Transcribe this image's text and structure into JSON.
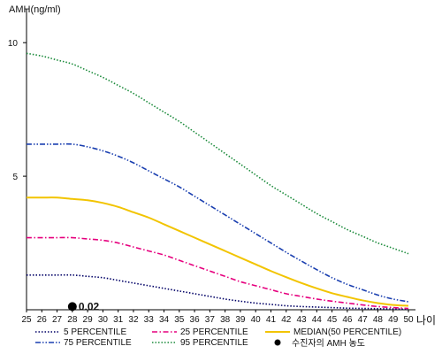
{
  "chart_data": {
    "type": "line",
    "ylabel": "AMH(ng/ml)",
    "xunit": "나이",
    "x": [
      25,
      26,
      27,
      28,
      29,
      30,
      31,
      32,
      33,
      34,
      35,
      36,
      37,
      38,
      39,
      40,
      41,
      42,
      43,
      44,
      45,
      46,
      47,
      48,
      49,
      50
    ],
    "x_ticks": [
      25,
      26,
      27,
      28,
      29,
      30,
      31,
      32,
      33,
      34,
      35,
      36,
      37,
      38,
      39,
      40,
      41,
      42,
      43,
      44,
      45,
      46,
      47,
      48,
      49,
      50
    ],
    "y_ticks": [
      5,
      10
    ],
    "xlim": [
      25,
      50
    ],
    "ylim": [
      0,
      11.2
    ],
    "grid": false,
    "legend_position": "bottom",
    "series": [
      {
        "name": "5 PERCENTILE",
        "color": "#000066",
        "dash": "dotted",
        "values": [
          1.3,
          1.3,
          1.3,
          1.3,
          1.25,
          1.2,
          1.1,
          1.0,
          0.9,
          0.8,
          0.7,
          0.6,
          0.5,
          0.4,
          0.32,
          0.25,
          0.2,
          0.15,
          0.12,
          0.1,
          0.08,
          0.06,
          0.05,
          0.04,
          0.03,
          0.02
        ]
      },
      {
        "name": "25 PERCENTILE",
        "color": "#e6007e",
        "dash": "dashdot",
        "values": [
          2.7,
          2.7,
          2.7,
          2.7,
          2.65,
          2.6,
          2.5,
          2.35,
          2.2,
          2.05,
          1.85,
          1.65,
          1.45,
          1.25,
          1.05,
          0.9,
          0.75,
          0.6,
          0.5,
          0.4,
          0.32,
          0.25,
          0.18,
          0.12,
          0.08,
          0.05
        ]
      },
      {
        "name": "MEDIAN(50 PERCENTILE)",
        "color": "#f2c400",
        "dash": "solid",
        "values": [
          4.2,
          4.2,
          4.2,
          4.15,
          4.1,
          4.0,
          3.85,
          3.65,
          3.45,
          3.2,
          2.95,
          2.7,
          2.45,
          2.2,
          1.95,
          1.7,
          1.45,
          1.22,
          1.0,
          0.8,
          0.62,
          0.48,
          0.35,
          0.25,
          0.18,
          0.15
        ]
      },
      {
        "name": "75 PERCENTILE",
        "color": "#1a3fb0",
        "dash": "dashdotdot",
        "values": [
          6.2,
          6.2,
          6.2,
          6.2,
          6.1,
          5.95,
          5.75,
          5.5,
          5.2,
          4.9,
          4.6,
          4.25,
          3.9,
          3.55,
          3.2,
          2.85,
          2.5,
          2.15,
          1.82,
          1.5,
          1.2,
          0.95,
          0.75,
          0.55,
          0.4,
          0.3
        ]
      },
      {
        "name": "95 PERCENTILE",
        "color": "#1a8a3a",
        "dash": "dotted",
        "values": [
          9.6,
          9.5,
          9.35,
          9.2,
          8.95,
          8.7,
          8.4,
          8.1,
          7.75,
          7.4,
          7.05,
          6.65,
          6.25,
          5.85,
          5.45,
          5.05,
          4.65,
          4.3,
          3.95,
          3.6,
          3.3,
          3.0,
          2.75,
          2.5,
          2.3,
          2.1
        ]
      }
    ],
    "point": {
      "legend": "수진자의 AMH 농도",
      "x": 28,
      "y": 0.02,
      "label": "0.02",
      "color": "#000000"
    }
  }
}
